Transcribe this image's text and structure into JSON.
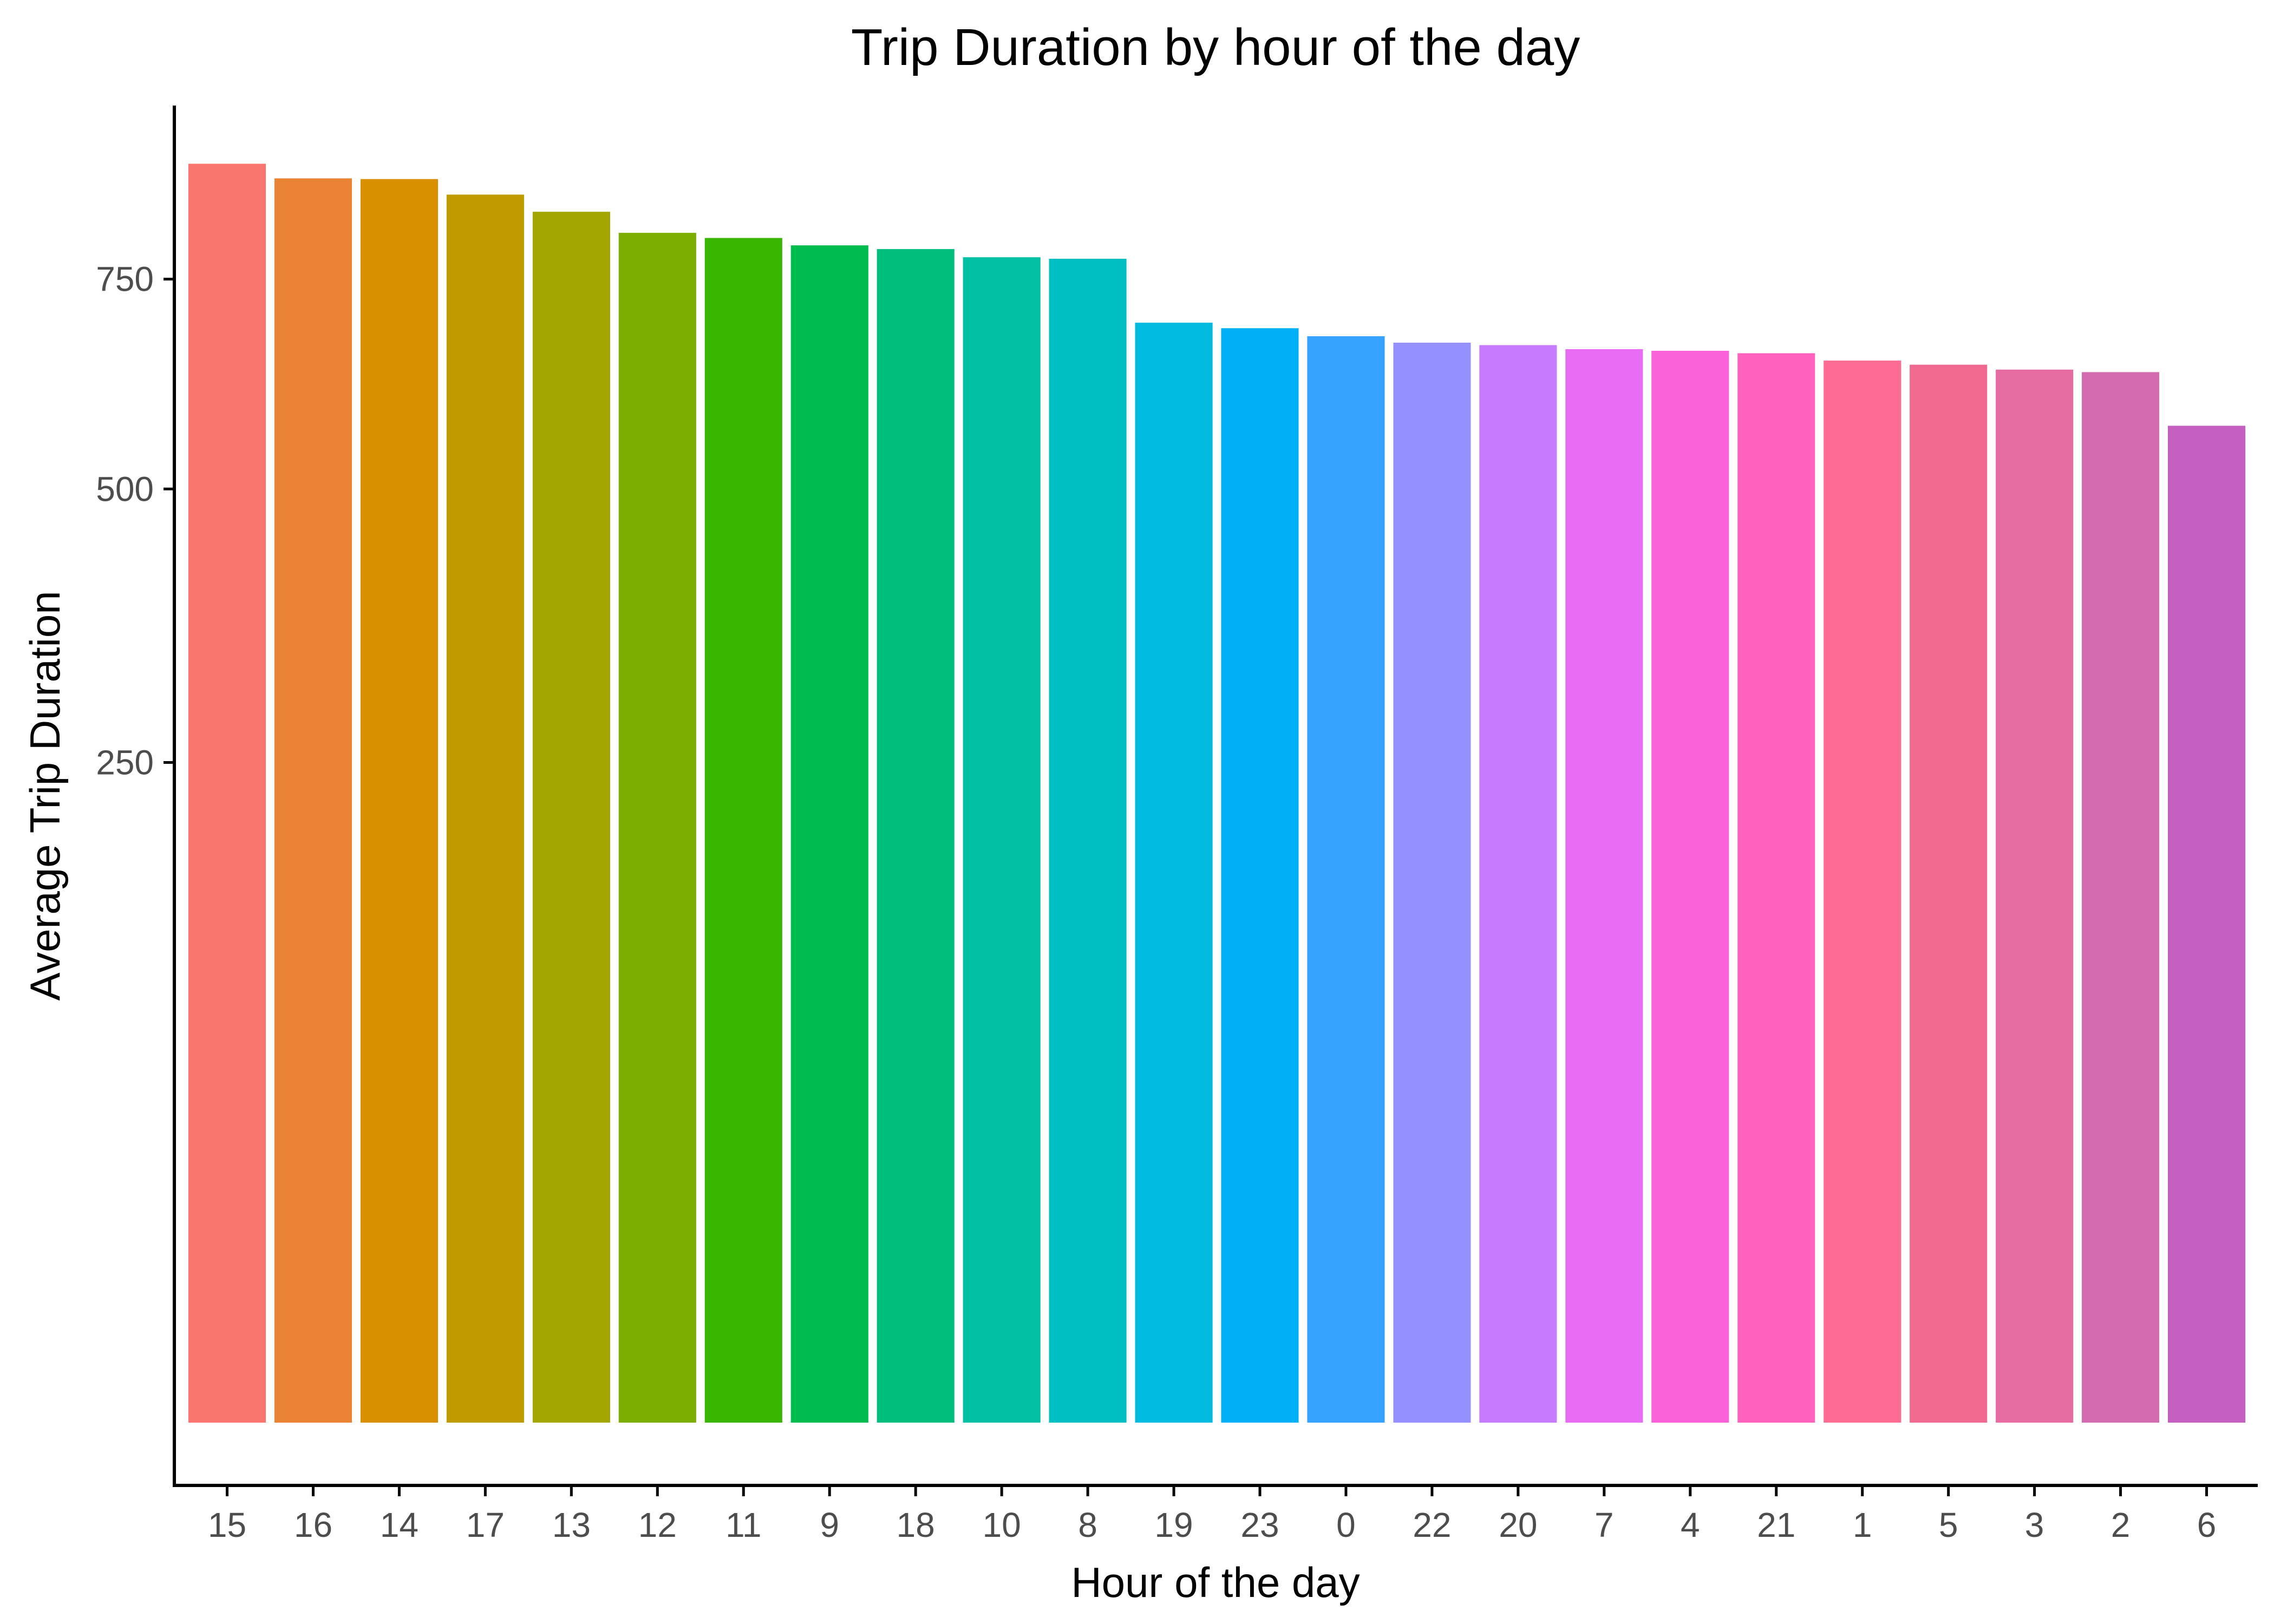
{
  "chart_data": {
    "type": "bar",
    "title": "Trip Duration by hour of the day",
    "xlabel": "Hour of the day",
    "ylabel": "Average Trip Duration",
    "categories": [
      "15",
      "16",
      "14",
      "17",
      "13",
      "12",
      "11",
      "9",
      "18",
      "10",
      "8",
      "19",
      "23",
      "0",
      "22",
      "20",
      "7",
      "4",
      "21",
      "1",
      "5",
      "3",
      "2",
      "6"
    ],
    "values": [
      909,
      888,
      887,
      865,
      841,
      812,
      805,
      795,
      790,
      779,
      777,
      694,
      687,
      677,
      669,
      666,
      661,
      659,
      656,
      647,
      642,
      636,
      633,
      570
    ],
    "y_scale": "sqrt",
    "y_ticks": [
      250,
      500,
      750
    ],
    "y_tick_labels": [
      "250",
      "500",
      "750"
    ],
    "ylim": [
      0,
      995
    ],
    "grid": false,
    "legend": "none",
    "colors": [
      "#F8766D",
      "#EB8335",
      "#D89000",
      "#C09B00",
      "#A3A500",
      "#7CAE00",
      "#39B600",
      "#00BB4E",
      "#00BF7D",
      "#00C1A3",
      "#00BFC4",
      "#00BAE0",
      "#00B0F6",
      "#35A2FF",
      "#9590FF",
      "#C77CFF",
      "#E76BF3",
      "#FA62DB",
      "#FF62BC",
      "#FF6C91",
      "#F06A8F",
      "#E56BA0",
      "#D46AB0",
      "#C560C2"
    ]
  }
}
